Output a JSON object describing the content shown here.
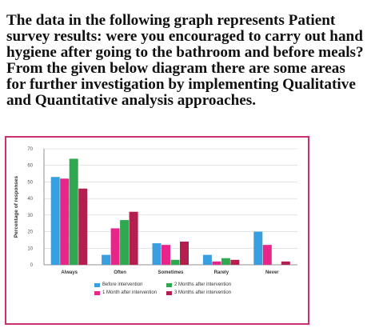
{
  "question": {
    "lines": [
      "The data in the following graph represents Patient",
      "survey results: were you encouraged to carry out hand",
      "hygiene after going to the bathroom and before meals?",
      "From the given below diagram there are some areas",
      "for further investigation by implementing Qualitative",
      "and Quantitative analysis approaches."
    ]
  },
  "colors": {
    "frame": "#c8306f",
    "series": [
      "#3a9fe0",
      "#e8268a",
      "#2fa84f",
      "#b3204f"
    ]
  },
  "chart_data": {
    "type": "bar",
    "title": "",
    "xlabel": "",
    "ylabel": "Percentage of responses",
    "ylim": [
      0,
      70
    ],
    "yticks": [
      "0",
      "10",
      "20",
      "30",
      "40",
      "50",
      "60",
      "70"
    ],
    "grid": true,
    "legend_position": "bottom",
    "categories": [
      "Always",
      "Often",
      "Sometimes",
      "Rarely",
      "Never"
    ],
    "series": [
      {
        "name": "Before intervention",
        "values": [
          53,
          6,
          13,
          6,
          20
        ]
      },
      {
        "name": "1 Month after intervention",
        "values": [
          52,
          22,
          12,
          2,
          12
        ]
      },
      {
        "name": "2 Months after intervention",
        "values": [
          64,
          27,
          3,
          4,
          0
        ]
      },
      {
        "name": "3 Months after intervention",
        "values": [
          46,
          32,
          14,
          3,
          2
        ]
      }
    ]
  }
}
